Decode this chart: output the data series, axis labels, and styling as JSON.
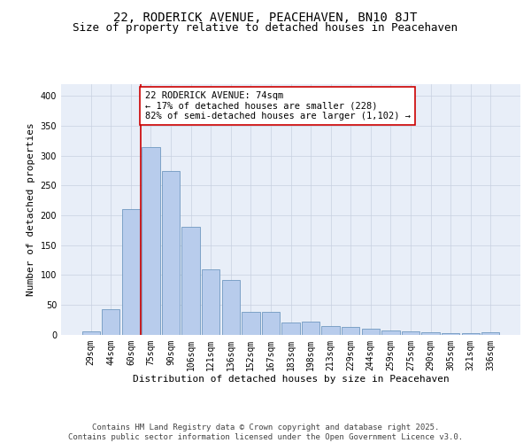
{
  "title": "22, RODERICK AVENUE, PEACEHAVEN, BN10 8JT",
  "subtitle": "Size of property relative to detached houses in Peacehaven",
  "xlabel": "Distribution of detached houses by size in Peacehaven",
  "ylabel": "Number of detached properties",
  "categories": [
    "29sqm",
    "44sqm",
    "60sqm",
    "75sqm",
    "90sqm",
    "106sqm",
    "121sqm",
    "136sqm",
    "152sqm",
    "167sqm",
    "183sqm",
    "198sqm",
    "213sqm",
    "229sqm",
    "244sqm",
    "259sqm",
    "275sqm",
    "290sqm",
    "305sqm",
    "321sqm",
    "336sqm"
  ],
  "bar_heights": [
    5,
    43,
    210,
    315,
    275,
    180,
    110,
    92,
    38,
    38,
    20,
    22,
    14,
    13,
    10,
    6,
    5,
    3,
    2,
    2,
    4
  ],
  "bar_color": "#b8ccec",
  "bar_edge_color": "#7098c0",
  "red_line_index": 3,
  "red_line_color": "#cc0000",
  "ylim": [
    0,
    420
  ],
  "yticks": [
    0,
    50,
    100,
    150,
    200,
    250,
    300,
    350,
    400
  ],
  "annotation_text": "22 RODERICK AVENUE: 74sqm\n← 17% of detached houses are smaller (228)\n82% of semi-detached houses are larger (1,102) →",
  "annotation_box_facecolor": "#ffffff",
  "annotation_box_edgecolor": "#cc0000",
  "footer_text": "Contains HM Land Registry data © Crown copyright and database right 2025.\nContains public sector information licensed under the Open Government Licence v3.0.",
  "title_fontsize": 10,
  "subtitle_fontsize": 9,
  "xlabel_fontsize": 8,
  "ylabel_fontsize": 8,
  "tick_fontsize": 7,
  "annotation_fontsize": 7.5,
  "footer_fontsize": 6.5,
  "background_color": "#e8eef8",
  "grid_color": "#c8d0e0",
  "fig_width": 6.0,
  "fig_height": 5.0,
  "fig_dpi": 100
}
